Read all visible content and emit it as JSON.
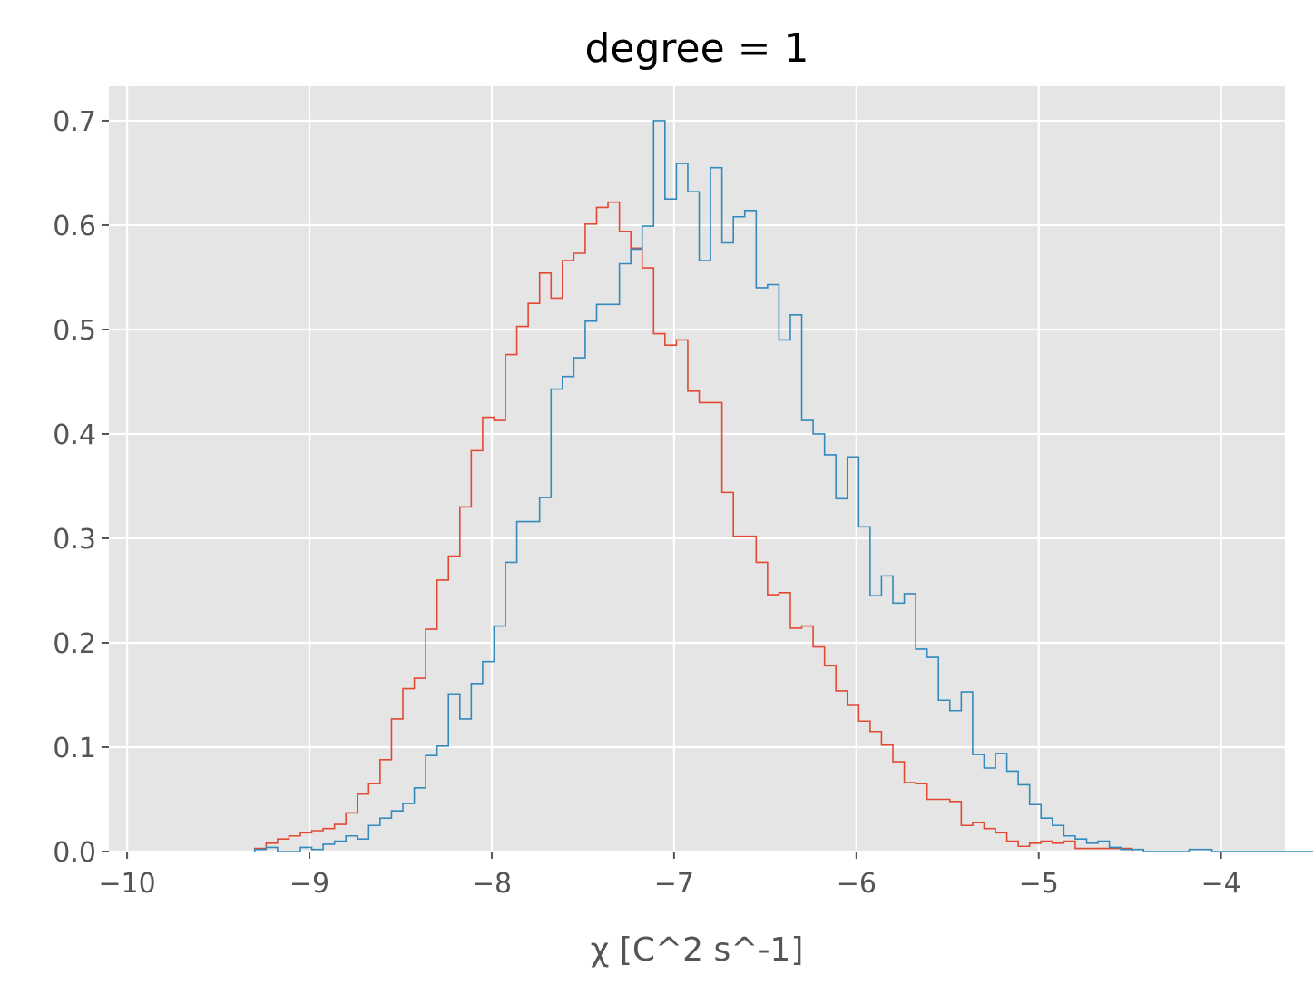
{
  "chart_data": {
    "type": "histogram",
    "title": "degree = 1",
    "xlabel": "χ [C^2 s^-1]",
    "ylabel": "",
    "xlim": [
      -10.1,
      -3.65
    ],
    "ylim": [
      0,
      0.733
    ],
    "xticks": [
      -10,
      -9,
      -8,
      -7,
      -6,
      -5,
      -4
    ],
    "xtick_labels": [
      "−10",
      "−9",
      "−8",
      "−7",
      "−6",
      "−5",
      "−4"
    ],
    "yticks": [
      0.0,
      0.1,
      0.2,
      0.3,
      0.4,
      0.5,
      0.6,
      0.7
    ],
    "ytick_labels": [
      "0.0",
      "0.1",
      "0.2",
      "0.3",
      "0.4",
      "0.5",
      "0.6",
      "0.7"
    ],
    "grid": true,
    "background": "#e5e5e5",
    "histtype": "step",
    "series": [
      {
        "color": "#e24a33",
        "x0": -9.3,
        "bin_width": 0.0625,
        "values": [
          0.003,
          0.008,
          0.012,
          0.015,
          0.018,
          0.02,
          0.022,
          0.026,
          0.037,
          0.055,
          0.065,
          0.088,
          0.127,
          0.156,
          0.166,
          0.213,
          0.26,
          0.283,
          0.33,
          0.384,
          0.416,
          0.413,
          0.476,
          0.503,
          0.525,
          0.554,
          0.53,
          0.566,
          0.573,
          0.601,
          0.617,
          0.622,
          0.594,
          0.578,
          0.559,
          0.496,
          0.485,
          0.49,
          0.441,
          0.43,
          0.43,
          0.344,
          0.302,
          0.302,
          0.277,
          0.246,
          0.248,
          0.214,
          0.216,
          0.196,
          0.178,
          0.154,
          0.14,
          0.125,
          0.115,
          0.102,
          0.086,
          0.066,
          0.065,
          0.05,
          0.05,
          0.048,
          0.025,
          0.028,
          0.022,
          0.018,
          0.01,
          0.005,
          0.008,
          0.01,
          0.008,
          0.01,
          0.003,
          0.003,
          0.003,
          0.003,
          0.003
        ]
      },
      {
        "color": "#348abd",
        "x0": -9.3,
        "bin_width": 0.0625,
        "values": [
          0.002,
          0.004,
          0.0,
          0.0,
          0.004,
          0.002,
          0.007,
          0.01,
          0.015,
          0.012,
          0.025,
          0.032,
          0.039,
          0.046,
          0.061,
          0.092,
          0.101,
          0.151,
          0.127,
          0.161,
          0.182,
          0.216,
          0.277,
          0.316,
          0.316,
          0.339,
          0.443,
          0.455,
          0.473,
          0.508,
          0.524,
          0.524,
          0.563,
          0.577,
          0.599,
          0.7,
          0.625,
          0.659,
          0.632,
          0.566,
          0.655,
          0.583,
          0.608,
          0.614,
          0.54,
          0.543,
          0.49,
          0.514,
          0.413,
          0.4,
          0.38,
          0.338,
          0.378,
          0.311,
          0.245,
          0.264,
          0.238,
          0.247,
          0.194,
          0.186,
          0.145,
          0.135,
          0.153,
          0.093,
          0.08,
          0.094,
          0.077,
          0.064,
          0.045,
          0.032,
          0.025,
          0.015,
          0.012,
          0.008,
          0.01,
          0.004,
          0.002,
          0.002,
          0.0,
          0.0,
          0.0,
          0.0,
          0.002,
          0.002,
          0.0,
          0.0,
          0.0,
          0.0,
          0.0,
          0.0,
          0.0,
          0.0,
          0.0,
          0.0,
          0.0,
          0.002
        ]
      }
    ]
  }
}
